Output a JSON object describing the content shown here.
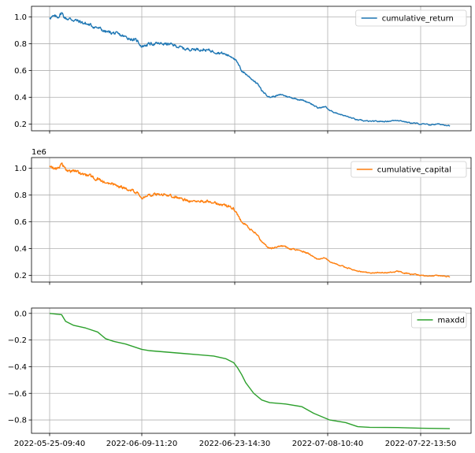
{
  "chart_data": [
    {
      "type": "line",
      "ylim": [
        0.15,
        1.08
      ],
      "yticks": [
        0.2,
        0.4,
        0.6,
        0.8,
        1.0
      ],
      "ytick_labels": [
        "0.2",
        "0.4",
        "0.6",
        "0.8",
        "1.0"
      ],
      "offset_text": "",
      "grid": true,
      "legend_position": "upper right",
      "series": [
        {
          "name": "cumulative_return",
          "color": "#1f77b4",
          "anchors": [
            [
              0,
              1.0
            ],
            [
              0.02,
              1.0
            ],
            [
              0.03,
              1.03
            ],
            [
              0.04,
              0.99
            ],
            [
              0.06,
              0.98
            ],
            [
              0.09,
              0.95
            ],
            [
              0.12,
              0.92
            ],
            [
              0.14,
              0.89
            ],
            [
              0.16,
              0.88
            ],
            [
              0.19,
              0.85
            ],
            [
              0.22,
              0.82
            ],
            [
              0.23,
              0.78
            ],
            [
              0.25,
              0.8
            ],
            [
              0.29,
              0.8
            ],
            [
              0.31,
              0.79
            ],
            [
              0.34,
              0.76
            ],
            [
              0.37,
              0.76
            ],
            [
              0.4,
              0.75
            ],
            [
              0.43,
              0.73
            ],
            [
              0.45,
              0.71
            ],
            [
              0.46,
              0.7
            ],
            [
              0.47,
              0.65
            ],
            [
              0.48,
              0.6
            ],
            [
              0.5,
              0.55
            ],
            [
              0.52,
              0.5
            ],
            [
              0.53,
              0.45
            ],
            [
              0.55,
              0.4
            ],
            [
              0.58,
              0.42
            ],
            [
              0.6,
              0.4
            ],
            [
              0.63,
              0.38
            ],
            [
              0.65,
              0.36
            ],
            [
              0.67,
              0.32
            ],
            [
              0.69,
              0.33
            ],
            [
              0.7,
              0.3
            ],
            [
              0.72,
              0.28
            ],
            [
              0.74,
              0.26
            ],
            [
              0.77,
              0.23
            ],
            [
              0.8,
              0.22
            ],
            [
              0.84,
              0.22
            ],
            [
              0.87,
              0.23
            ],
            [
              0.9,
              0.21
            ],
            [
              0.93,
              0.2
            ],
            [
              0.95,
              0.195
            ],
            [
              0.97,
              0.2
            ],
            [
              1.0,
              0.19
            ]
          ]
        }
      ]
    },
    {
      "type": "line",
      "ylim": [
        0.15,
        1.08
      ],
      "yticks": [
        0.2,
        0.4,
        0.6,
        0.8,
        1.0
      ],
      "ytick_labels": [
        "0.2",
        "0.4",
        "0.6",
        "0.8",
        "1.0"
      ],
      "offset_text": "1e6",
      "grid": true,
      "legend_position": "upper right",
      "series": [
        {
          "name": "cumulative_capital",
          "color": "#ff7f0e",
          "anchors": [
            [
              0,
              1.0
            ],
            [
              0.02,
              1.0
            ],
            [
              0.03,
              1.03
            ],
            [
              0.04,
              0.99
            ],
            [
              0.06,
              0.98
            ],
            [
              0.09,
              0.95
            ],
            [
              0.12,
              0.92
            ],
            [
              0.14,
              0.89
            ],
            [
              0.16,
              0.88
            ],
            [
              0.19,
              0.85
            ],
            [
              0.22,
              0.82
            ],
            [
              0.23,
              0.78
            ],
            [
              0.25,
              0.8
            ],
            [
              0.29,
              0.8
            ],
            [
              0.31,
              0.79
            ],
            [
              0.34,
              0.76
            ],
            [
              0.37,
              0.76
            ],
            [
              0.4,
              0.75
            ],
            [
              0.43,
              0.73
            ],
            [
              0.45,
              0.71
            ],
            [
              0.46,
              0.7
            ],
            [
              0.47,
              0.65
            ],
            [
              0.48,
              0.6
            ],
            [
              0.5,
              0.55
            ],
            [
              0.52,
              0.5
            ],
            [
              0.53,
              0.45
            ],
            [
              0.55,
              0.4
            ],
            [
              0.58,
              0.42
            ],
            [
              0.6,
              0.4
            ],
            [
              0.63,
              0.38
            ],
            [
              0.65,
              0.36
            ],
            [
              0.67,
              0.32
            ],
            [
              0.69,
              0.33
            ],
            [
              0.7,
              0.3
            ],
            [
              0.72,
              0.28
            ],
            [
              0.74,
              0.26
            ],
            [
              0.77,
              0.23
            ],
            [
              0.8,
              0.22
            ],
            [
              0.84,
              0.22
            ],
            [
              0.87,
              0.23
            ],
            [
              0.9,
              0.21
            ],
            [
              0.93,
              0.2
            ],
            [
              0.95,
              0.195
            ],
            [
              0.97,
              0.2
            ],
            [
              1.0,
              0.19
            ]
          ]
        }
      ]
    },
    {
      "type": "line",
      "ylim": [
        -0.9,
        0.04
      ],
      "yticks": [
        -0.8,
        -0.6,
        -0.4,
        -0.2,
        0.0
      ],
      "ytick_labels": [
        "−0.8",
        "−0.6",
        "−0.4",
        "−0.2",
        "0.0"
      ],
      "offset_text": "",
      "grid": true,
      "legend_position": "upper right",
      "xtick_labels": [
        "2022-05-25-09:40",
        "2022-06-09-11:20",
        "2022-06-23-14:30",
        "2022-07-08-10:40",
        "2022-07-22-13:50"
      ],
      "series": [
        {
          "name": "maxdd",
          "color": "#2ca02c",
          "steps": [
            [
              0,
              0.0
            ],
            [
              0.03,
              -0.01
            ],
            [
              0.04,
              -0.06
            ],
            [
              0.06,
              -0.09
            ],
            [
              0.09,
              -0.11
            ],
            [
              0.12,
              -0.14
            ],
            [
              0.14,
              -0.19
            ],
            [
              0.16,
              -0.21
            ],
            [
              0.19,
              -0.23
            ],
            [
              0.23,
              -0.27
            ],
            [
              0.25,
              -0.28
            ],
            [
              0.33,
              -0.3
            ],
            [
              0.37,
              -0.31
            ],
            [
              0.41,
              -0.32
            ],
            [
              0.44,
              -0.34
            ],
            [
              0.46,
              -0.37
            ],
            [
              0.47,
              -0.41
            ],
            [
              0.48,
              -0.46
            ],
            [
              0.49,
              -0.52
            ],
            [
              0.5,
              -0.56
            ],
            [
              0.51,
              -0.6
            ],
            [
              0.53,
              -0.65
            ],
            [
              0.55,
              -0.67
            ],
            [
              0.59,
              -0.68
            ],
            [
              0.63,
              -0.7
            ],
            [
              0.66,
              -0.75
            ],
            [
              0.7,
              -0.8
            ],
            [
              0.74,
              -0.82
            ],
            [
              0.77,
              -0.85
            ],
            [
              0.8,
              -0.855
            ],
            [
              0.84,
              -0.856
            ],
            [
              0.87,
              -0.857
            ],
            [
              0.93,
              -0.862
            ],
            [
              1.0,
              -0.865
            ]
          ]
        }
      ]
    }
  ]
}
